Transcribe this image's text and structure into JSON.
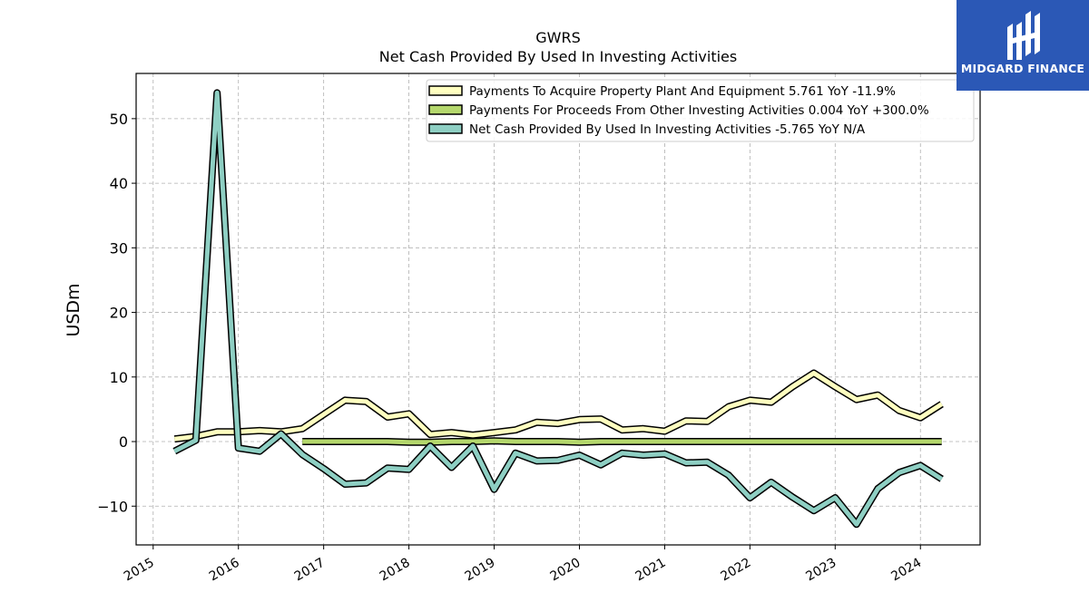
{
  "brand": {
    "name": "MIDGARD FINANCE",
    "color": "#2b58b6"
  },
  "chart_data": {
    "type": "line",
    "title": "GWRS",
    "subtitle": "Net Cash Provided By Used In Investing Activities",
    "ylabel": "USDm",
    "xlabel": "",
    "ylim": [
      -16,
      57
    ],
    "xlim": [
      2014.8,
      2024.7
    ],
    "yticks": [
      -10,
      0,
      10,
      20,
      30,
      40,
      50
    ],
    "xticks": [
      "2015",
      "2016",
      "2017",
      "2018",
      "2019",
      "2020",
      "2021",
      "2022",
      "2023",
      "2024"
    ],
    "grid": true,
    "legend_position": "top-right",
    "series": [
      {
        "name": "Payments To Acquire Property Plant And Equipment  5.761 YoY -11.9%",
        "color": "#ffffc0",
        "x": [
          2015.25,
          2015.5,
          2015.75,
          2016.0,
          2016.25,
          2016.5,
          2016.75,
          2017.0,
          2017.25,
          2017.5,
          2017.75,
          2018.0,
          2018.25,
          2018.5,
          2018.75,
          2019.0,
          2019.25,
          2019.5,
          2019.75,
          2020.0,
          2020.25,
          2020.5,
          2020.75,
          2021.0,
          2021.25,
          2021.5,
          2021.75,
          2022.0,
          2022.25,
          2022.5,
          2022.75,
          2023.0,
          2023.25,
          2023.5,
          2023.75,
          2024.0,
          2024.25
        ],
        "values": [
          0.4,
          0.8,
          1.5,
          1.5,
          1.7,
          1.5,
          2.0,
          4.2,
          6.4,
          6.2,
          3.8,
          4.3,
          1.1,
          1.4,
          1.0,
          1.4,
          1.8,
          3.0,
          2.8,
          3.4,
          3.5,
          1.8,
          2.0,
          1.6,
          3.2,
          3.1,
          5.4,
          6.4,
          6.1,
          8.5,
          10.6,
          8.5,
          6.5,
          7.2,
          4.8,
          3.7,
          5.8
        ]
      },
      {
        "name": "Payments For Proceeds From Other Investing Activities  0.004 YoY +300.0%",
        "color": "#b5d86d",
        "x": [
          2016.75,
          2017.0,
          2017.25,
          2017.5,
          2017.75,
          2018.0,
          2018.25,
          2018.5,
          2018.75,
          2019.0,
          2019.25,
          2019.5,
          2019.75,
          2020.0,
          2020.25,
          2020.5,
          2020.75,
          2021.0,
          2021.25,
          2021.5,
          2021.75,
          2022.0,
          2022.25,
          2022.5,
          2022.75,
          2023.0,
          2023.25,
          2023.5,
          2023.75,
          2024.0,
          2024.25
        ],
        "values": [
          0.0,
          0.0,
          0.0,
          0.0,
          0.0,
          -0.1,
          -0.1,
          0.0,
          0.0,
          0.1,
          0.0,
          0.0,
          0.0,
          -0.1,
          0.0,
          0.0,
          0.0,
          0.0,
          0.0,
          0.0,
          0.0,
          0.0,
          0.0,
          0.0,
          0.0,
          0.0,
          0.0,
          0.0,
          0.0,
          0.0,
          0.0
        ]
      },
      {
        "name": "Net Cash Provided By Used In Investing Activities  -5.765 YoY N/A",
        "color": "#8ecfc3",
        "x": [
          2015.25,
          2015.5,
          2015.75,
          2016.0,
          2016.25,
          2016.5,
          2016.75,
          2017.0,
          2017.25,
          2017.5,
          2017.75,
          2018.0,
          2018.25,
          2018.5,
          2018.75,
          2019.0,
          2019.25,
          2019.5,
          2019.75,
          2020.0,
          2020.25,
          2020.5,
          2020.75,
          2021.0,
          2021.25,
          2021.5,
          2021.75,
          2022.0,
          2022.25,
          2022.5,
          2022.75,
          2023.0,
          2023.25,
          2023.5,
          2023.75,
          2024.0,
          2024.25
        ],
        "values": [
          -1.5,
          0.2,
          54.0,
          -1.0,
          -1.5,
          1.2,
          -2.0,
          -4.2,
          -6.6,
          -6.4,
          -4.1,
          -4.3,
          -0.7,
          -4.0,
          -0.7,
          -7.4,
          -1.8,
          -3.0,
          -2.9,
          -2.1,
          -3.6,
          -1.8,
          -2.1,
          -1.9,
          -3.3,
          -3.2,
          -5.2,
          -8.7,
          -6.3,
          -8.6,
          -10.7,
          -8.7,
          -12.8,
          -7.3,
          -4.8,
          -3.7,
          -5.8
        ]
      }
    ]
  }
}
